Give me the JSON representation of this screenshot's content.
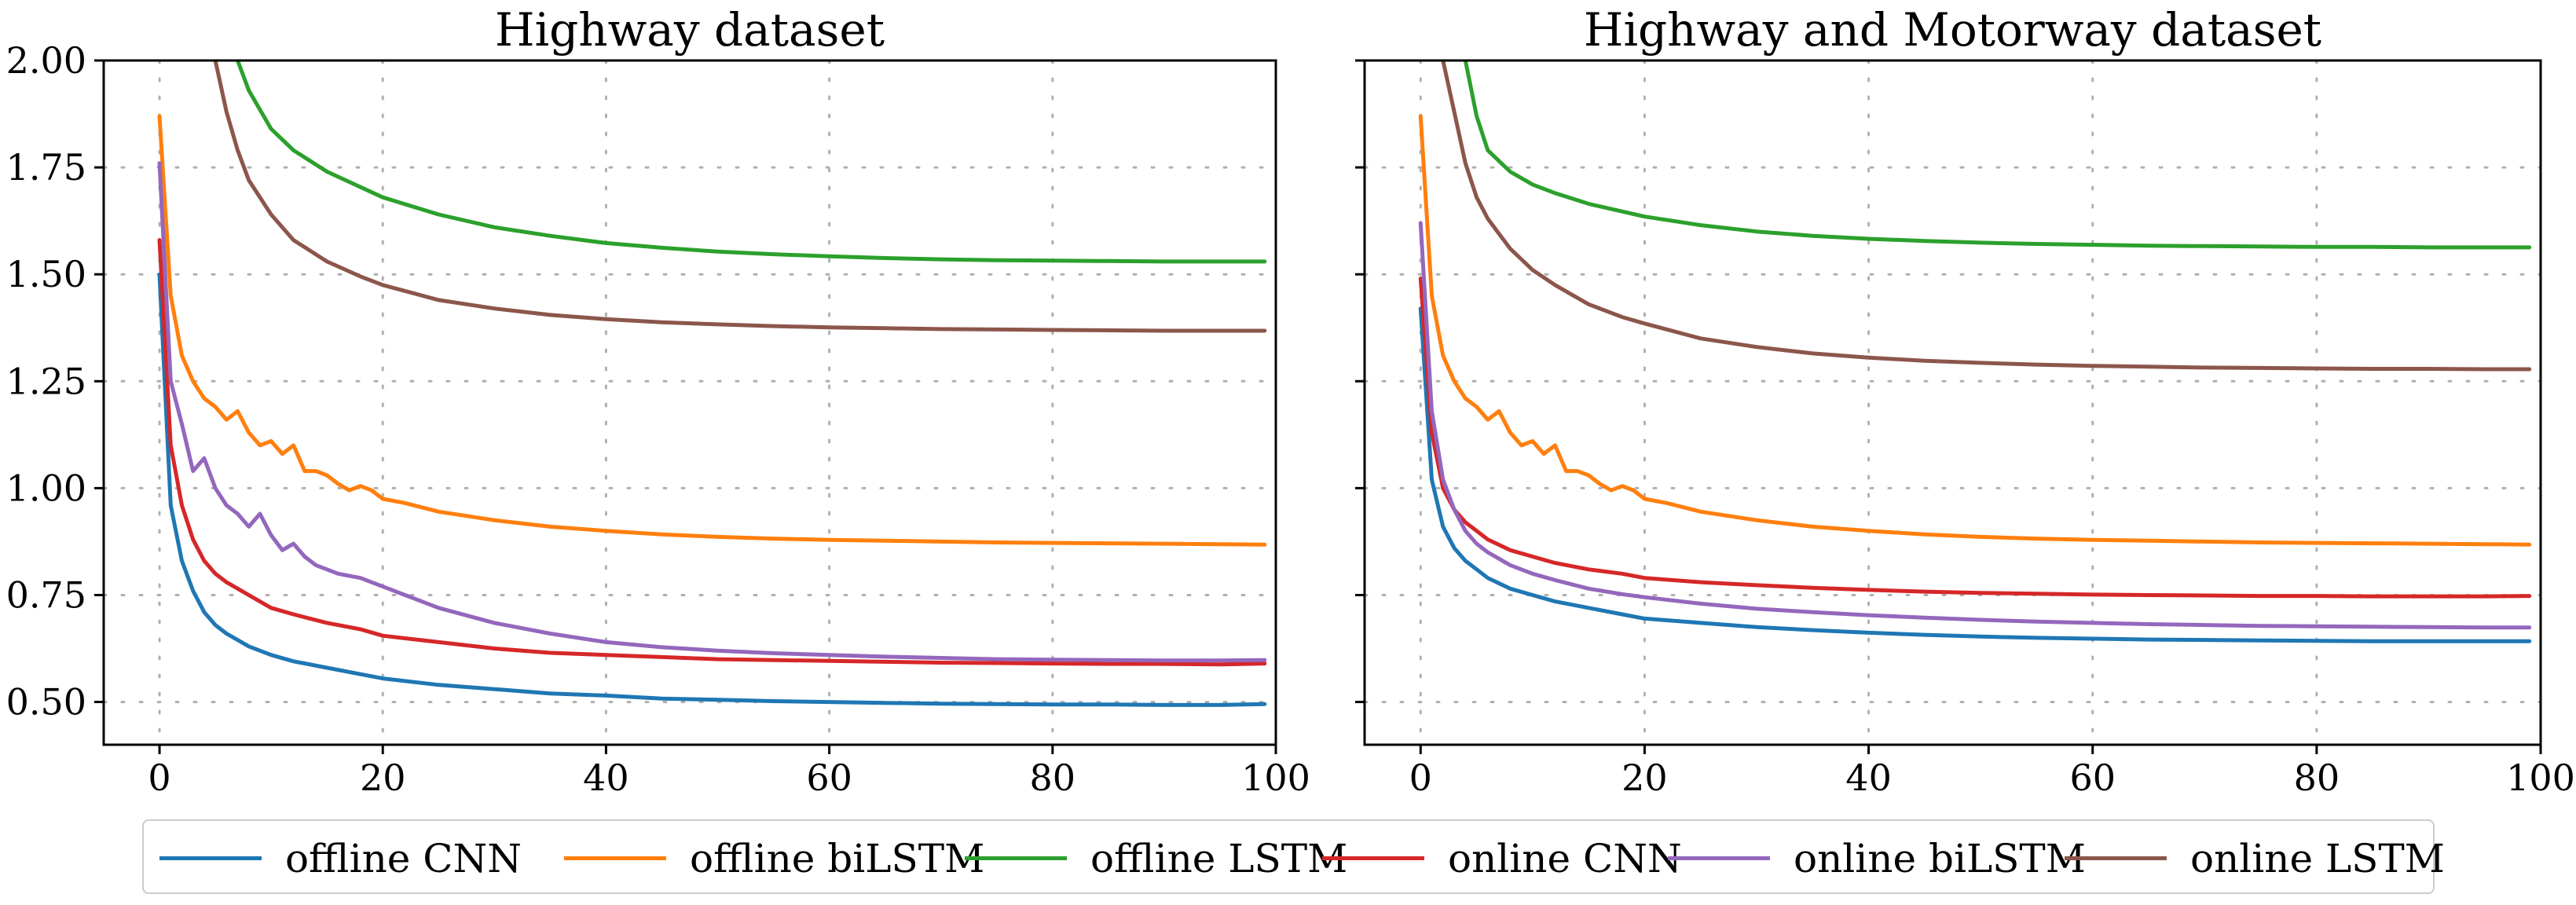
{
  "chart_data": [
    {
      "type": "line",
      "title": "Highway dataset",
      "xlabel": "",
      "ylabel": "",
      "xlim": [
        -5,
        100
      ],
      "ylim": [
        0.4,
        2.0
      ],
      "xticks": [
        0,
        20,
        40,
        60,
        80,
        100
      ],
      "yticks": [
        0.5,
        0.75,
        1.0,
        1.25,
        1.5,
        1.75,
        2.0
      ],
      "xtick_labels": [
        "0",
        "20",
        "40",
        "60",
        "80",
        "100"
      ],
      "ytick_labels": [
        "0.50",
        "0.75",
        "1.00",
        "1.25",
        "1.50",
        "1.75",
        "2.00"
      ],
      "grid": true,
      "series": [
        {
          "name": "offline CNN",
          "color": "#1f77b4",
          "x": [
            0,
            1,
            2,
            3,
            4,
            5,
            6,
            8,
            10,
            12,
            15,
            18,
            20,
            25,
            30,
            35,
            40,
            45,
            50,
            55,
            60,
            65,
            70,
            75,
            80,
            85,
            90,
            95,
            99
          ],
          "y": [
            1.5,
            0.96,
            0.83,
            0.76,
            0.71,
            0.68,
            0.66,
            0.63,
            0.61,
            0.595,
            0.58,
            0.565,
            0.555,
            0.54,
            0.53,
            0.52,
            0.515,
            0.508,
            0.505,
            0.502,
            0.5,
            0.498,
            0.496,
            0.495,
            0.494,
            0.494,
            0.493,
            0.493,
            0.495
          ]
        },
        {
          "name": "offline biLSTM",
          "color": "#ff7f0e",
          "x": [
            0,
            1,
            2,
            3,
            4,
            5,
            6,
            7,
            8,
            9,
            10,
            11,
            12,
            13,
            14,
            15,
            16,
            17,
            18,
            19,
            20,
            22,
            25,
            30,
            35,
            40,
            45,
            50,
            55,
            60,
            65,
            70,
            75,
            80,
            85,
            90,
            95,
            99
          ],
          "y": [
            1.87,
            1.45,
            1.31,
            1.25,
            1.21,
            1.19,
            1.16,
            1.18,
            1.13,
            1.1,
            1.11,
            1.08,
            1.1,
            1.04,
            1.04,
            1.03,
            1.01,
            0.995,
            1.005,
            0.995,
            0.975,
            0.965,
            0.945,
            0.925,
            0.91,
            0.9,
            0.892,
            0.886,
            0.882,
            0.879,
            0.877,
            0.875,
            0.873,
            0.872,
            0.871,
            0.87,
            0.869,
            0.868
          ]
        },
        {
          "name": "offline LSTM",
          "color": "#2ca02c",
          "x": [
            7,
            8,
            10,
            12,
            15,
            20,
            25,
            30,
            35,
            40,
            45,
            50,
            55,
            60,
            65,
            70,
            75,
            80,
            85,
            90,
            95,
            99
          ],
          "y": [
            2.0,
            1.93,
            1.84,
            1.79,
            1.74,
            1.68,
            1.64,
            1.61,
            1.59,
            1.573,
            1.562,
            1.553,
            1.547,
            1.542,
            1.538,
            1.535,
            1.533,
            1.532,
            1.531,
            1.53,
            1.53,
            1.53
          ]
        },
        {
          "name": "online CNN",
          "color": "#d62728",
          "x": [
            0,
            1,
            2,
            3,
            4,
            5,
            6,
            8,
            10,
            12,
            15,
            18,
            20,
            25,
            30,
            35,
            40,
            45,
            50,
            55,
            60,
            65,
            70,
            75,
            80,
            85,
            90,
            95,
            99
          ],
          "y": [
            1.58,
            1.1,
            0.96,
            0.88,
            0.83,
            0.8,
            0.78,
            0.75,
            0.72,
            0.705,
            0.685,
            0.67,
            0.655,
            0.64,
            0.625,
            0.615,
            0.61,
            0.605,
            0.6,
            0.598,
            0.596,
            0.594,
            0.592,
            0.591,
            0.59,
            0.589,
            0.589,
            0.588,
            0.59
          ]
        },
        {
          "name": "online biLSTM",
          "color": "#9467bd",
          "x": [
            0,
            1,
            2,
            3,
            4,
            5,
            6,
            7,
            8,
            9,
            10,
            11,
            12,
            13,
            14,
            15,
            16,
            18,
            20,
            22,
            25,
            30,
            35,
            40,
            45,
            50,
            55,
            60,
            65,
            70,
            75,
            80,
            85,
            90,
            95,
            99
          ],
          "y": [
            1.76,
            1.25,
            1.15,
            1.04,
            1.07,
            1.0,
            0.96,
            0.94,
            0.91,
            0.94,
            0.89,
            0.855,
            0.87,
            0.84,
            0.82,
            0.81,
            0.8,
            0.79,
            0.77,
            0.75,
            0.72,
            0.685,
            0.66,
            0.64,
            0.628,
            0.62,
            0.614,
            0.61,
            0.606,
            0.603,
            0.6,
            0.599,
            0.598,
            0.597,
            0.597,
            0.598
          ]
        },
        {
          "name": "online LSTM",
          "color": "#8c564b",
          "x": [
            5,
            6,
            7,
            8,
            10,
            12,
            15,
            18,
            20,
            25,
            30,
            35,
            40,
            45,
            50,
            55,
            60,
            65,
            70,
            75,
            80,
            85,
            90,
            95,
            99
          ],
          "y": [
            2.0,
            1.88,
            1.79,
            1.72,
            1.64,
            1.58,
            1.53,
            1.495,
            1.475,
            1.44,
            1.42,
            1.405,
            1.395,
            1.388,
            1.383,
            1.379,
            1.376,
            1.374,
            1.372,
            1.371,
            1.37,
            1.369,
            1.368,
            1.368,
            1.368
          ]
        }
      ]
    },
    {
      "type": "line",
      "title": "Highway and Motorway dataset",
      "xlabel": "",
      "ylabel": "",
      "xlim": [
        -5,
        100
      ],
      "ylim": [
        0.4,
        2.0
      ],
      "xticks": [
        0,
        20,
        40,
        60,
        80,
        100
      ],
      "yticks": [
        0.5,
        0.75,
        1.0,
        1.25,
        1.5,
        1.75,
        2.0
      ],
      "xtick_labels": [
        "0",
        "20",
        "40",
        "60",
        "80",
        "100"
      ],
      "ytick_labels": [],
      "grid": true,
      "series": [
        {
          "name": "offline CNN",
          "color": "#1f77b4",
          "x": [
            0,
            1,
            2,
            3,
            4,
            5,
            6,
            8,
            10,
            12,
            15,
            18,
            20,
            25,
            30,
            35,
            40,
            45,
            50,
            55,
            60,
            65,
            70,
            75,
            80,
            85,
            90,
            95,
            99
          ],
          "y": [
            1.42,
            1.02,
            0.91,
            0.86,
            0.83,
            0.81,
            0.79,
            0.765,
            0.75,
            0.735,
            0.72,
            0.705,
            0.695,
            0.685,
            0.675,
            0.668,
            0.662,
            0.657,
            0.653,
            0.65,
            0.648,
            0.646,
            0.645,
            0.644,
            0.643,
            0.642,
            0.642,
            0.642,
            0.642
          ]
        },
        {
          "name": "offline biLSTM",
          "color": "#ff7f0e",
          "x": [
            0,
            1,
            2,
            3,
            4,
            5,
            6,
            7,
            8,
            9,
            10,
            11,
            12,
            13,
            14,
            15,
            16,
            17,
            18,
            19,
            20,
            22,
            25,
            30,
            35,
            40,
            45,
            50,
            55,
            60,
            65,
            70,
            75,
            80,
            85,
            90,
            95,
            99
          ],
          "y": [
            1.87,
            1.45,
            1.31,
            1.25,
            1.21,
            1.19,
            1.16,
            1.18,
            1.13,
            1.1,
            1.11,
            1.08,
            1.1,
            1.04,
            1.04,
            1.03,
            1.01,
            0.995,
            1.005,
            0.995,
            0.975,
            0.965,
            0.945,
            0.925,
            0.91,
            0.9,
            0.892,
            0.886,
            0.882,
            0.879,
            0.877,
            0.875,
            0.873,
            0.872,
            0.871,
            0.87,
            0.869,
            0.868
          ]
        },
        {
          "name": "offline LSTM",
          "color": "#2ca02c",
          "x": [
            4,
            5,
            6,
            8,
            10,
            12,
            15,
            20,
            25,
            30,
            35,
            40,
            45,
            50,
            55,
            60,
            65,
            70,
            75,
            80,
            85,
            90,
            95,
            99
          ],
          "y": [
            2.0,
            1.87,
            1.79,
            1.74,
            1.71,
            1.69,
            1.665,
            1.635,
            1.615,
            1.6,
            1.59,
            1.583,
            1.578,
            1.574,
            1.571,
            1.569,
            1.567,
            1.566,
            1.565,
            1.564,
            1.564,
            1.563,
            1.563,
            1.563
          ]
        },
        {
          "name": "online CNN",
          "color": "#d62728",
          "x": [
            0,
            1,
            2,
            3,
            4,
            5,
            6,
            8,
            10,
            12,
            15,
            18,
            20,
            25,
            30,
            35,
            40,
            45,
            50,
            55,
            60,
            65,
            70,
            75,
            80,
            85,
            90,
            95,
            99
          ],
          "y": [
            1.49,
            1.13,
            1.0,
            0.95,
            0.92,
            0.9,
            0.88,
            0.855,
            0.84,
            0.825,
            0.81,
            0.8,
            0.79,
            0.78,
            0.773,
            0.767,
            0.762,
            0.758,
            0.755,
            0.753,
            0.751,
            0.75,
            0.749,
            0.748,
            0.748,
            0.747,
            0.747,
            0.747,
            0.748
          ]
        },
        {
          "name": "online biLSTM",
          "color": "#9467bd",
          "x": [
            0,
            1,
            2,
            3,
            4,
            5,
            6,
            8,
            10,
            12,
            15,
            18,
            20,
            25,
            30,
            35,
            40,
            45,
            50,
            55,
            60,
            65,
            70,
            75,
            80,
            85,
            90,
            95,
            99
          ],
          "y": [
            1.62,
            1.18,
            1.02,
            0.95,
            0.9,
            0.87,
            0.85,
            0.82,
            0.8,
            0.785,
            0.765,
            0.752,
            0.745,
            0.73,
            0.718,
            0.71,
            0.703,
            0.697,
            0.692,
            0.688,
            0.685,
            0.682,
            0.68,
            0.678,
            0.677,
            0.676,
            0.675,
            0.674,
            0.674
          ]
        },
        {
          "name": "online LSTM",
          "color": "#8c564b",
          "x": [
            2,
            3,
            4,
            5,
            6,
            8,
            10,
            12,
            15,
            18,
            20,
            25,
            30,
            35,
            40,
            45,
            50,
            55,
            60,
            65,
            70,
            75,
            80,
            85,
            90,
            95,
            99
          ],
          "y": [
            2.0,
            1.88,
            1.76,
            1.68,
            1.63,
            1.56,
            1.51,
            1.475,
            1.43,
            1.4,
            1.385,
            1.35,
            1.33,
            1.315,
            1.305,
            1.298,
            1.293,
            1.289,
            1.286,
            1.284,
            1.282,
            1.281,
            1.28,
            1.279,
            1.279,
            1.278,
            1.278
          ]
        }
      ]
    }
  ],
  "legend": {
    "placement": "bottom-center",
    "entries": [
      {
        "label": "offline CNN",
        "color": "#1f77b4"
      },
      {
        "label": "offline biLSTM",
        "color": "#ff7f0e"
      },
      {
        "label": "offline LSTM",
        "color": "#2ca02c"
      },
      {
        "label": "online CNN",
        "color": "#d62728"
      },
      {
        "label": "online biLSTM",
        "color": "#9467bd"
      },
      {
        "label": "online LSTM",
        "color": "#8c564b"
      }
    ]
  }
}
